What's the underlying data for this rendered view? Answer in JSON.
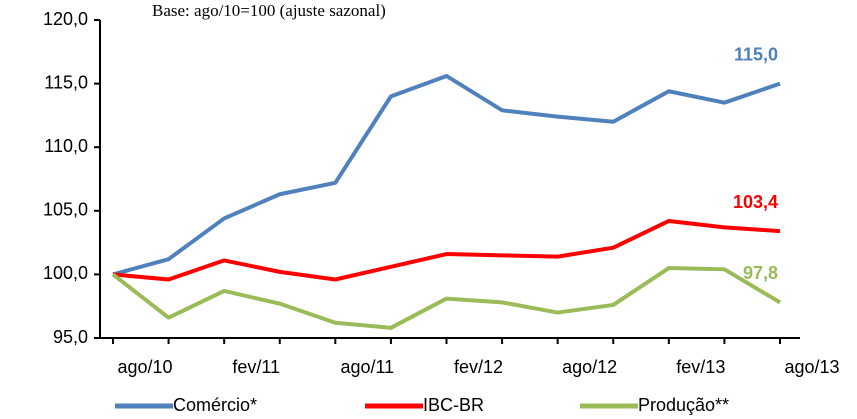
{
  "chart_data": {
    "type": "line",
    "subtitle": "Base: ago/10=100 (ajuste sazonal)",
    "categories": [
      "ago/10",
      null,
      "fev/11",
      null,
      "ago/11",
      null,
      "fev/12",
      null,
      "ago/12",
      null,
      "fev/13",
      null,
      "ago/13"
    ],
    "series": [
      {
        "name": "Comércio*",
        "color": "#4f81bd",
        "values": [
          100,
          101.2,
          104.4,
          106.3,
          107.2,
          114.0,
          115.6,
          112.9,
          112.4,
          112.0,
          114.4,
          113.5,
          115.0
        ],
        "value_labels": [
          null,
          null,
          null,
          null,
          null,
          null,
          null,
          null,
          null,
          null,
          null,
          null,
          "115,0"
        ]
      },
      {
        "name": "IBC-BR",
        "color": "#ff0000",
        "values": [
          100,
          99.6,
          101.1,
          100.2,
          99.6,
          100.6,
          101.6,
          101.5,
          101.4,
          102.1,
          104.2,
          103.7,
          103.4
        ],
        "value_labels": [
          null,
          null,
          null,
          null,
          null,
          null,
          null,
          null,
          null,
          null,
          null,
          null,
          "103,4"
        ]
      },
      {
        "name": "Produção**",
        "color": "#9bbb59",
        "values": [
          100,
          96.6,
          98.7,
          97.7,
          96.2,
          95.8,
          98.1,
          97.8,
          97.0,
          97.6,
          100.5,
          100.4,
          97.8
        ],
        "value_labels": [
          null,
          null,
          null,
          null,
          null,
          null,
          null,
          null,
          null,
          null,
          null,
          null,
          "97,8"
        ]
      }
    ],
    "ylim": [
      95,
      120
    ],
    "yticks": [
      {
        "value": 95,
        "label": "95,0"
      },
      {
        "value": 100,
        "label": "100,0"
      },
      {
        "value": 105,
        "label": "105,0"
      },
      {
        "value": 110,
        "label": "110,0"
      },
      {
        "value": 115,
        "label": "115,0"
      },
      {
        "value": 120,
        "label": "120,0"
      }
    ]
  }
}
